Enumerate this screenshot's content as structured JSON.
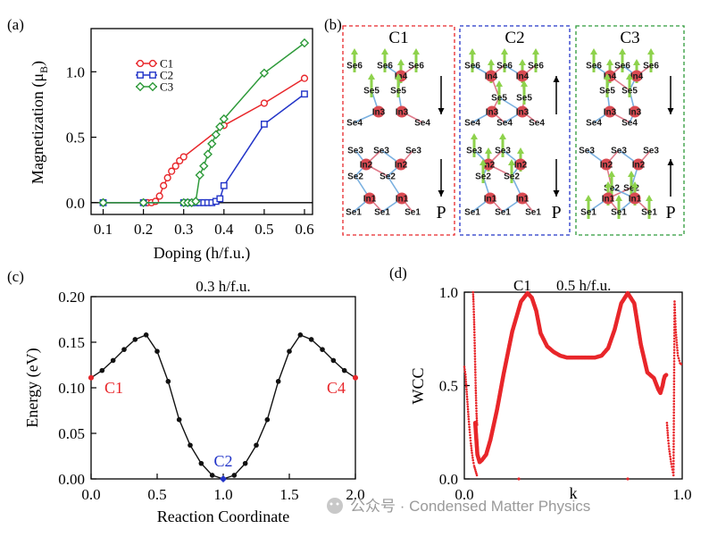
{
  "panels": {
    "a": {
      "label": "(a)"
    },
    "b": {
      "label": "(b)",
      "configs": [
        {
          "name": "C1",
          "color": "#e8262a",
          "top_atoms": [
            "Se6",
            "Se6",
            "Se6",
            "In4",
            "Se5",
            "Se5",
            "In3",
            "In3",
            "Se4",
            "Se4"
          ],
          "bottom_atoms": [
            "Se3",
            "Se3",
            "Se3",
            "In2",
            "In2",
            "Se2",
            "Se2",
            "In1",
            "In1",
            "Se1",
            "Se1",
            "Se1"
          ],
          "arrow_top": "down",
          "arrow_bottom": "down",
          "p_label": "P"
        },
        {
          "name": "C2",
          "color": "#2234c8",
          "top_atoms": [
            "Se6",
            "Se6",
            "Se6",
            "In4",
            "In4",
            "Se5",
            "Se5",
            "In3",
            "In3",
            "Se4",
            "Se4",
            "Se4"
          ],
          "bottom_atoms": [
            "Se3",
            "Se3",
            "In2",
            "In2",
            "Se2",
            "Se2",
            "In1",
            "In1",
            "Se1",
            "Se1",
            "Se1"
          ],
          "arrow_top": "up",
          "arrow_bottom": "down",
          "p_label": "P"
        },
        {
          "name": "C3",
          "color": "#2e9a3a",
          "top_atoms": [
            "Se6",
            "Se6",
            "Se6",
            "In4",
            "In4",
            "Se5",
            "Se5",
            "In3",
            "In3",
            "Se4",
            "Se4"
          ],
          "bottom_atoms": [
            "Se3",
            "Se3",
            "Se3",
            "In2",
            "In2",
            "Se2",
            "Se2",
            "In1",
            "In1",
            "Se1",
            "Se1",
            "Se1"
          ],
          "arrow_top": "down",
          "arrow_bottom": "up",
          "p_label": "P"
        }
      ]
    },
    "c": {
      "label": "(c)"
    },
    "d": {
      "label": "(d)"
    }
  },
  "watermark": "公众号 · Condensed Matter Physics",
  "chart_data": [
    {
      "panel": "a",
      "type": "line",
      "title": "",
      "xlabel": "Doping (h/f.u.)",
      "ylabel": "Magnetization (μB)",
      "ylabel_main": "Magnetization (μ",
      "ylabel_sub": "B",
      "ylabel_tail": ")",
      "xlim": [
        0.07,
        0.62
      ],
      "ylim": [
        -0.09,
        1.33
      ],
      "xticks": [
        "0.1",
        "0.2",
        "0.3",
        "0.4",
        "0.5",
        "0.6"
      ],
      "yticks": [
        "0.0",
        "0.5",
        "1.0"
      ],
      "zero_line": true,
      "legend_position": "upper-left",
      "series": [
        {
          "name": "C1",
          "color": "#e8262a",
          "marker": "circle",
          "x": [
            0.1,
            0.2,
            0.21,
            0.22,
            0.23,
            0.24,
            0.25,
            0.26,
            0.27,
            0.28,
            0.29,
            0.3,
            0.4,
            0.5,
            0.6
          ],
          "y": [
            0,
            0,
            0,
            0,
            0.01,
            0.05,
            0.13,
            0.19,
            0.24,
            0.28,
            0.32,
            0.35,
            0.59,
            0.76,
            0.95
          ]
        },
        {
          "name": "C2",
          "color": "#2234c8",
          "marker": "square",
          "x": [
            0.1,
            0.2,
            0.3,
            0.31,
            0.32,
            0.33,
            0.34,
            0.35,
            0.36,
            0.37,
            0.38,
            0.39,
            0.4,
            0.5,
            0.6
          ],
          "y": [
            0,
            0,
            0,
            0,
            0,
            0,
            0,
            0,
            0,
            0,
            0.01,
            0.03,
            0.13,
            0.6,
            0.83
          ]
        },
        {
          "name": "C3",
          "color": "#2e9a3a",
          "marker": "diamond",
          "x": [
            0.1,
            0.2,
            0.3,
            0.31,
            0.32,
            0.33,
            0.34,
            0.35,
            0.36,
            0.37,
            0.38,
            0.39,
            0.4,
            0.5,
            0.6
          ],
          "y": [
            0,
            0,
            0,
            0,
            0,
            0.01,
            0.21,
            0.28,
            0.37,
            0.45,
            0.52,
            0.58,
            0.64,
            0.99,
            1.22
          ]
        }
      ]
    },
    {
      "panel": "c",
      "type": "line",
      "title": "0.3 h/f.u.",
      "xlabel": "Reaction Coordinate",
      "ylabel": "Energy (eV)",
      "xlim": [
        0,
        2.0
      ],
      "ylim": [
        0,
        0.2
      ],
      "xticks": [
        "0.0",
        "0.5",
        "1.0",
        "1.5",
        "2.0"
      ],
      "yticks": [
        "0.00",
        "0.05",
        "0.10",
        "0.15",
        "0.20"
      ],
      "series": [
        {
          "name": "",
          "color": "#111111",
          "marker": "circle",
          "x": [
            0,
            0.0833,
            0.1667,
            0.25,
            0.3333,
            0.4167,
            0.5,
            0.5833,
            0.6667,
            0.75,
            0.8333,
            0.9167,
            1.0,
            1.0833,
            1.1667,
            1.25,
            1.3333,
            1.4167,
            1.5,
            1.5833,
            1.6667,
            1.75,
            1.8333,
            1.9167,
            2.0
          ],
          "y": [
            0.111,
            0.119,
            0.13,
            0.142,
            0.153,
            0.158,
            0.14,
            0.107,
            0.065,
            0.037,
            0.017,
            0.004,
            0.0,
            0.004,
            0.017,
            0.037,
            0.065,
            0.107,
            0.14,
            0.158,
            0.153,
            0.142,
            0.13,
            0.119,
            0.111
          ]
        }
      ],
      "annotations": [
        {
          "text": "C1",
          "x": 0.0,
          "y": 0.111,
          "color": "#e8262a"
        },
        {
          "text": "C2",
          "x": 1.0,
          "y": 0.0,
          "color": "#2234c8"
        },
        {
          "text": "C4",
          "x": 2.0,
          "y": 0.111,
          "color": "#e8262a"
        }
      ]
    },
    {
      "panel": "d",
      "type": "scatter",
      "title": "C1   0.5 h/f.u.",
      "title_c1": "C1",
      "title_rest": "0.5 h/f.u.",
      "xlabel": "k",
      "ylabel": "WCC",
      "xlim": [
        0,
        1.0
      ],
      "ylim": [
        0,
        1.0
      ],
      "xticks": [
        "0.0",
        "1.0"
      ],
      "yticks": [
        "0.0",
        "0.5",
        "1.0"
      ],
      "color": "#e8262a",
      "main_band": {
        "k": [
          0.05,
          0.06,
          0.07,
          0.08,
          0.1,
          0.12,
          0.15,
          0.18,
          0.22,
          0.26,
          0.29,
          0.31,
          0.33,
          0.35,
          0.38,
          0.41,
          0.44,
          0.47,
          0.5,
          0.55,
          0.6,
          0.63,
          0.66,
          0.69,
          0.72,
          0.75,
          0.78,
          0.81,
          0.84,
          0.87,
          0.89,
          0.9,
          0.91,
          0.915,
          0.92,
          0.93
        ],
        "wcc": [
          0.3,
          0.13,
          0.09,
          0.1,
          0.13,
          0.21,
          0.37,
          0.56,
          0.79,
          0.95,
          0.995,
          0.97,
          0.9,
          0.78,
          0.71,
          0.68,
          0.66,
          0.65,
          0.65,
          0.65,
          0.65,
          0.66,
          0.7,
          0.8,
          0.94,
          0.995,
          0.94,
          0.72,
          0.57,
          0.54,
          0.48,
          0.46,
          0.5,
          0.53,
          0.55,
          0.56
        ]
      },
      "edge_branches": [
        {
          "k": [
            0.0,
            0.005,
            0.01,
            0.015,
            0.02,
            0.025,
            0.03,
            0.035,
            0.04,
            0.045,
            0.05,
            0.055,
            0.06
          ],
          "wcc": [
            0.6,
            0.56,
            0.48,
            0.4,
            0.32,
            0.25,
            0.19,
            0.14,
            0.1,
            0.07,
            0.05,
            0.03,
            0.01
          ]
        },
        {
          "k": [
            0.04,
            0.042,
            0.044,
            0.046,
            0.048,
            0.05,
            0.052,
            0.054,
            0.056,
            0.058,
            0.06
          ],
          "wcc": [
            1.0,
            0.95,
            0.88,
            0.8,
            0.7,
            0.6,
            0.5,
            0.42,
            0.35,
            0.3,
            0.28
          ]
        },
        {
          "k": [
            0.93,
            0.935,
            0.94,
            0.945,
            0.95,
            0.955,
            0.96,
            0.965,
            0.97,
            0.98,
            0.99,
            1.0
          ],
          "wcc": [
            0.3,
            0.22,
            0.16,
            0.12,
            0.08,
            0.05,
            0.02,
            0.95,
            0.8,
            0.66,
            0.62,
            0.61
          ]
        }
      ]
    }
  ]
}
